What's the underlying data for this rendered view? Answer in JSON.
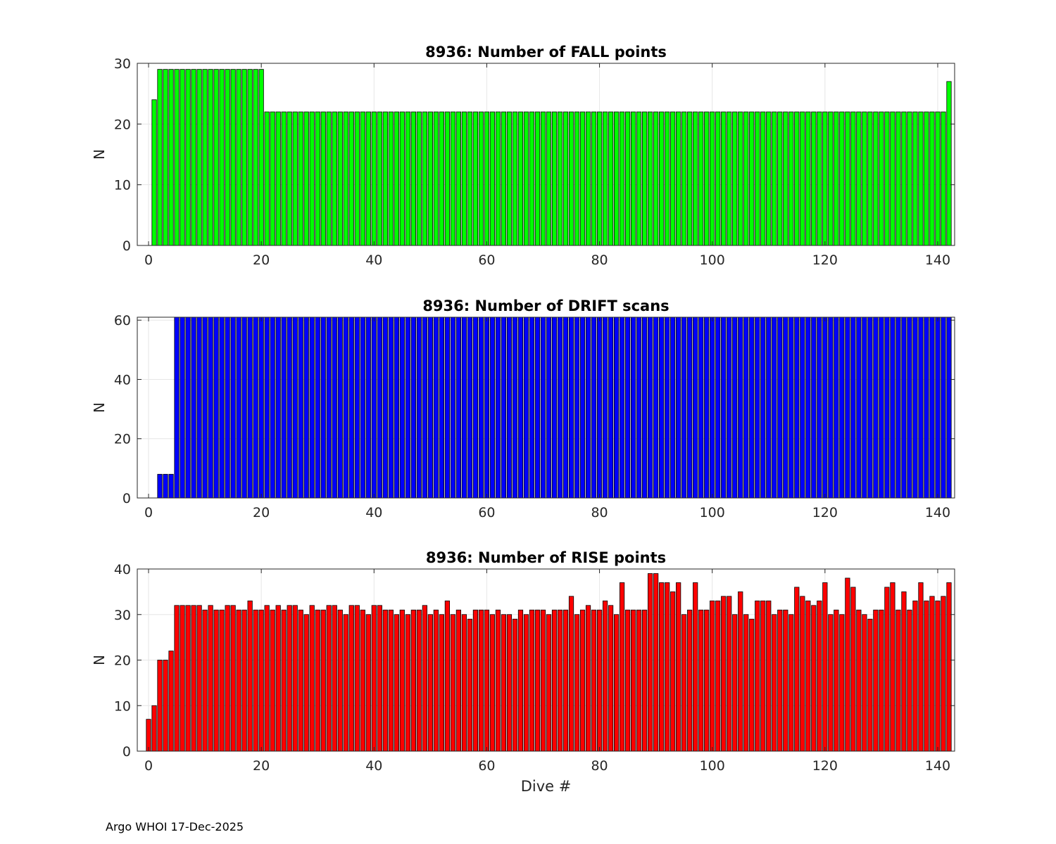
{
  "footer": "Argo WHOI 17-Dec-2025",
  "chart_data": [
    {
      "type": "bar",
      "title": "8936: Number of FALL points",
      "xlabel": "",
      "ylabel": "N",
      "color": "#00ff00",
      "xlim": [
        -2,
        143
      ],
      "ylim": [
        0,
        30
      ],
      "xticks": [
        0,
        20,
        40,
        60,
        80,
        100,
        120,
        140
      ],
      "yticks": [
        0,
        10,
        20,
        30
      ],
      "grid": true,
      "x_start": 0,
      "values": [
        0,
        24,
        29,
        29,
        29,
        29,
        29,
        29,
        29,
        29,
        29,
        29,
        29,
        29,
        29,
        29,
        29,
        29,
        29,
        29,
        29,
        22,
        22,
        22,
        22,
        22,
        22,
        22,
        22,
        22,
        22,
        22,
        22,
        22,
        22,
        22,
        22,
        22,
        22,
        22,
        22,
        22,
        22,
        22,
        22,
        22,
        22,
        22,
        22,
        22,
        22,
        22,
        22,
        22,
        22,
        22,
        22,
        22,
        22,
        22,
        22,
        22,
        22,
        22,
        22,
        22,
        22,
        22,
        22,
        22,
        22,
        22,
        22,
        22,
        22,
        22,
        22,
        22,
        22,
        22,
        22,
        22,
        22,
        22,
        22,
        22,
        22,
        22,
        22,
        22,
        22,
        22,
        22,
        22,
        22,
        22,
        22,
        22,
        22,
        22,
        22,
        22,
        22,
        22,
        22,
        22,
        22,
        22,
        22,
        22,
        22,
        22,
        22,
        22,
        22,
        22,
        22,
        22,
        22,
        22,
        22,
        22,
        22,
        22,
        22,
        22,
        22,
        22,
        22,
        22,
        22,
        22,
        22,
        22,
        22,
        22,
        22,
        22,
        22,
        22,
        22,
        22,
        27
      ]
    },
    {
      "type": "bar",
      "title": "8936: Number of DRIFT scans",
      "xlabel": "",
      "ylabel": "N",
      "color": "#0000ff",
      "xlim": [
        -2,
        143
      ],
      "ylim": [
        0,
        61
      ],
      "xticks": [
        0,
        20,
        40,
        60,
        80,
        100,
        120,
        140
      ],
      "yticks": [
        0,
        20,
        40,
        60
      ],
      "grid": true,
      "x_start": -1,
      "values": [
        0,
        0,
        0,
        8,
        8,
        8,
        61,
        61,
        61,
        61,
        61,
        61,
        61,
        61,
        61,
        61,
        61,
        61,
        61,
        61,
        61,
        61,
        61,
        61,
        61,
        61,
        61,
        61,
        61,
        61,
        61,
        61,
        61,
        61,
        61,
        61,
        61,
        61,
        61,
        61,
        61,
        61,
        61,
        61,
        61,
        61,
        61,
        61,
        61,
        61,
        61,
        61,
        61,
        61,
        61,
        61,
        61,
        61,
        61,
        61,
        61,
        61,
        61,
        61,
        61,
        61,
        61,
        61,
        61,
        61,
        61,
        61,
        61,
        61,
        61,
        61,
        61,
        61,
        61,
        61,
        61,
        61,
        61,
        61,
        61,
        61,
        61,
        61,
        61,
        61,
        61,
        61,
        61,
        61,
        61,
        61,
        61,
        61,
        61,
        61,
        61,
        61,
        61,
        61,
        61,
        61,
        61,
        61,
        61,
        61,
        61,
        61,
        61,
        61,
        61,
        61,
        61,
        61,
        61,
        61,
        61,
        61,
        61,
        61,
        61,
        61,
        61,
        61,
        61,
        61,
        61,
        61,
        61,
        61,
        61,
        61,
        61,
        61,
        61,
        61,
        61,
        61,
        61,
        61
      ]
    },
    {
      "type": "bar",
      "title": "8936: Number of RISE points",
      "xlabel": "Dive #",
      "ylabel": "N",
      "color": "#ff0000",
      "xlim": [
        -2,
        143
      ],
      "ylim": [
        0,
        40
      ],
      "xticks": [
        0,
        20,
        40,
        60,
        80,
        100,
        120,
        140
      ],
      "yticks": [
        0,
        10,
        20,
        30,
        40
      ],
      "grid": true,
      "x_start": 0,
      "values": [
        7,
        10,
        20,
        20,
        22,
        32,
        32,
        32,
        32,
        32,
        31,
        32,
        31,
        31,
        32,
        32,
        31,
        31,
        33,
        31,
        31,
        32,
        31,
        32,
        31,
        32,
        32,
        31,
        30,
        32,
        31,
        31,
        32,
        32,
        31,
        30,
        32,
        32,
        31,
        30,
        32,
        32,
        31,
        31,
        30,
        31,
        30,
        31,
        31,
        32,
        30,
        31,
        30,
        33,
        30,
        31,
        30,
        29,
        31,
        31,
        31,
        30,
        31,
        30,
        30,
        29,
        31,
        30,
        31,
        31,
        31,
        30,
        31,
        31,
        31,
        34,
        30,
        31,
        32,
        31,
        31,
        33,
        32,
        30,
        37,
        31,
        31,
        31,
        31,
        39,
        39,
        37,
        37,
        35,
        37,
        30,
        31,
        37,
        31,
        31,
        33,
        33,
        34,
        34,
        30,
        35,
        30,
        29,
        33,
        33,
        33,
        30,
        31,
        31,
        30,
        36,
        34,
        33,
        32,
        33,
        37,
        30,
        31,
        30,
        38,
        36,
        31,
        30,
        29,
        31,
        31,
        36,
        37,
        31,
        35,
        31,
        33,
        37,
        33,
        34,
        33,
        34,
        37
      ]
    }
  ]
}
